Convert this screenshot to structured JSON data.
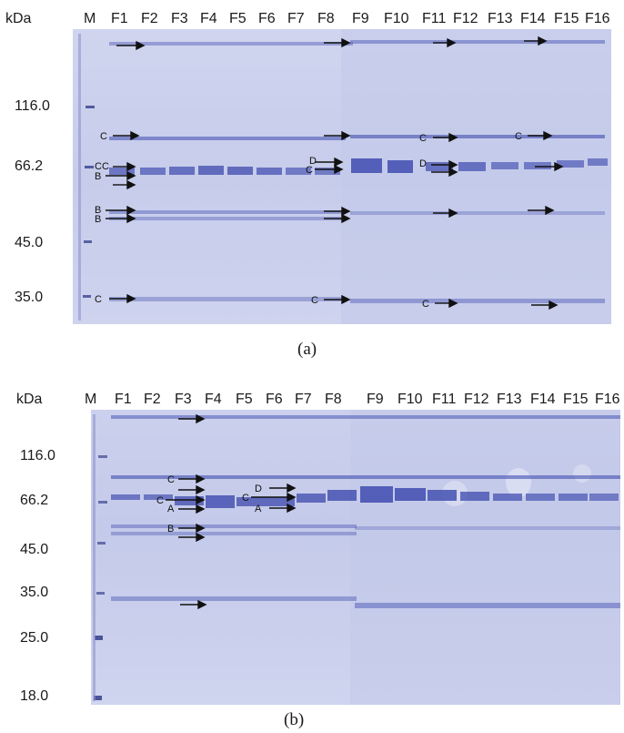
{
  "panel_a": {
    "caption": "(a)",
    "unit_label": "kDa",
    "lanes": [
      "M",
      "F1",
      "F2",
      "F3",
      "F4",
      "F5",
      "F6",
      "F7",
      "F8",
      "F9",
      "F10",
      "F11",
      "F12",
      "F13",
      "F14",
      "F15",
      "F16"
    ],
    "markers": [
      "116.0",
      "66.2",
      "45.0",
      "35.0"
    ],
    "annotation_letters": [
      "C",
      "C",
      "B",
      "B",
      "B",
      "C",
      "D",
      "C",
      "C",
      "C",
      "D",
      "C",
      "C",
      "C"
    ]
  },
  "panel_b": {
    "caption": "(b)",
    "unit_label": "kDa",
    "lanes": [
      "M",
      "F1",
      "F2",
      "F3",
      "F4",
      "F5",
      "F6",
      "F7",
      "F8",
      "F9",
      "F10",
      "F11",
      "F12",
      "F13",
      "F14",
      "F15",
      "F16"
    ],
    "markers": [
      "116.0",
      "66.2",
      "45.0",
      "35.0",
      "25.0",
      "18.0"
    ],
    "annotation_letters": [
      "C",
      "C",
      "A",
      "B",
      "D",
      "C",
      "A"
    ]
  },
  "colors": {
    "gel_background": "#c9cfec",
    "band": "#4d59b5",
    "marker_band": "#3b468f",
    "arrow": "#111111"
  }
}
